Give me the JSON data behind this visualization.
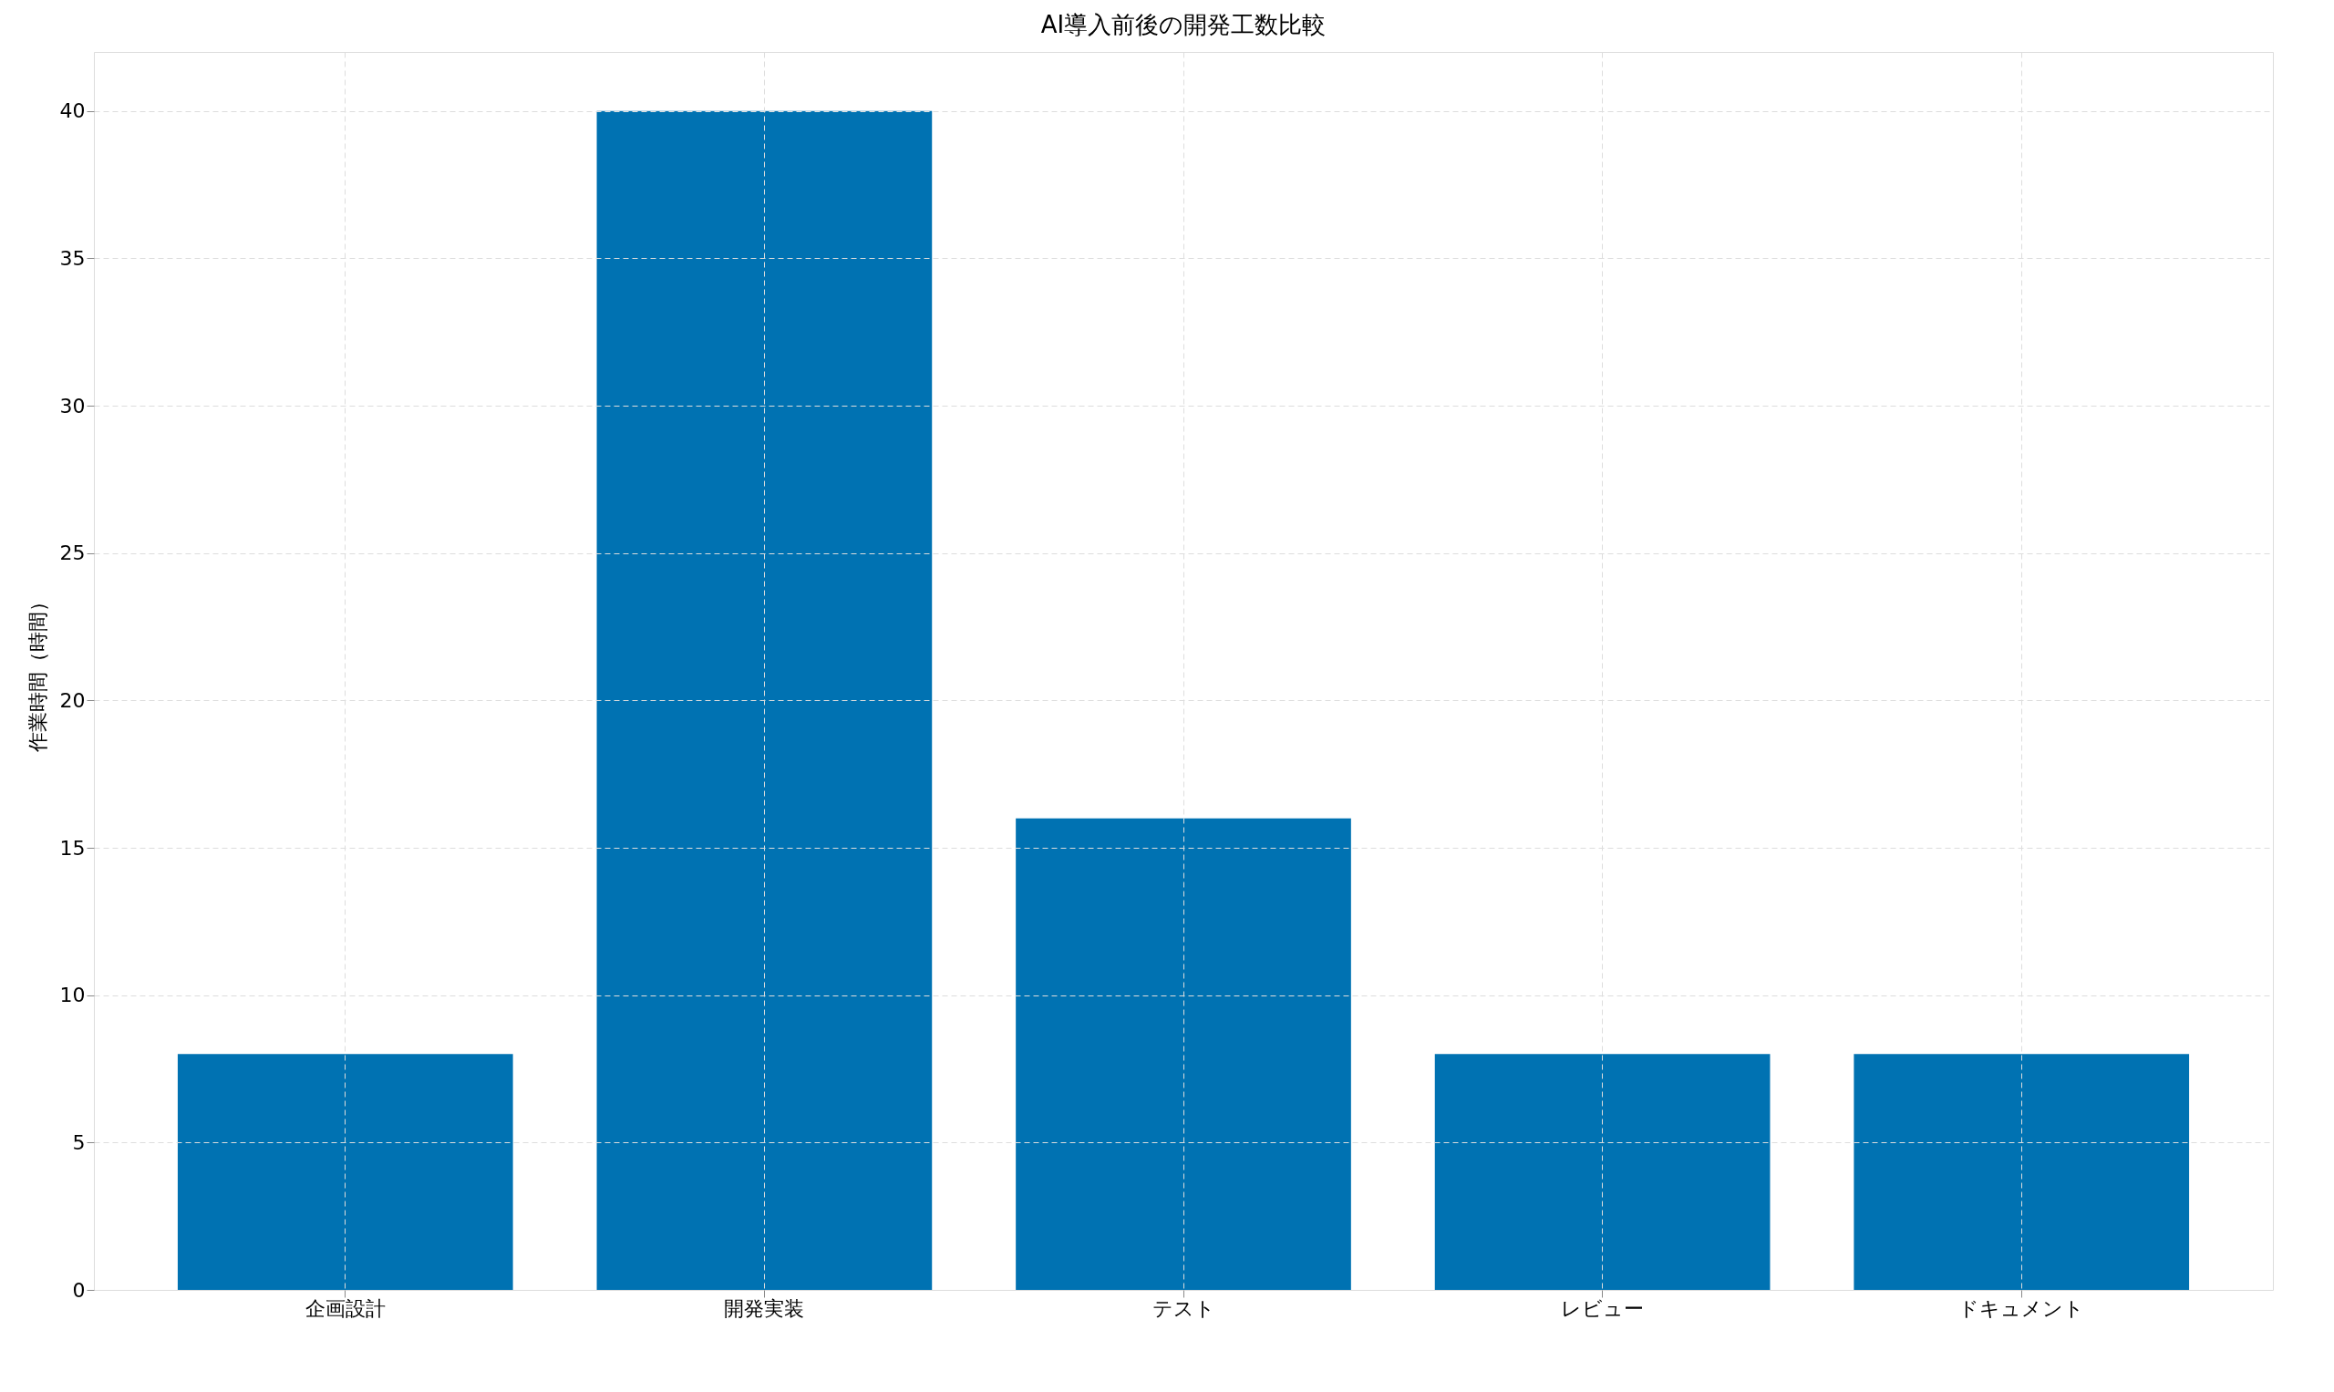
{
  "chart_data": {
    "type": "bar",
    "title": "AI導入前後の開発工数比較",
    "ylabel": "作業時間（時間）",
    "categories": [
      "企画設計",
      "開発実装",
      "テスト",
      "レビュー",
      "ドキュメント"
    ],
    "values": [
      8,
      40,
      16,
      8,
      8
    ],
    "color": "#0072b2",
    "ylim": [
      0,
      42
    ],
    "yticks": [
      0,
      5,
      10,
      15,
      20,
      25,
      30,
      35,
      40
    ],
    "grid": true
  }
}
